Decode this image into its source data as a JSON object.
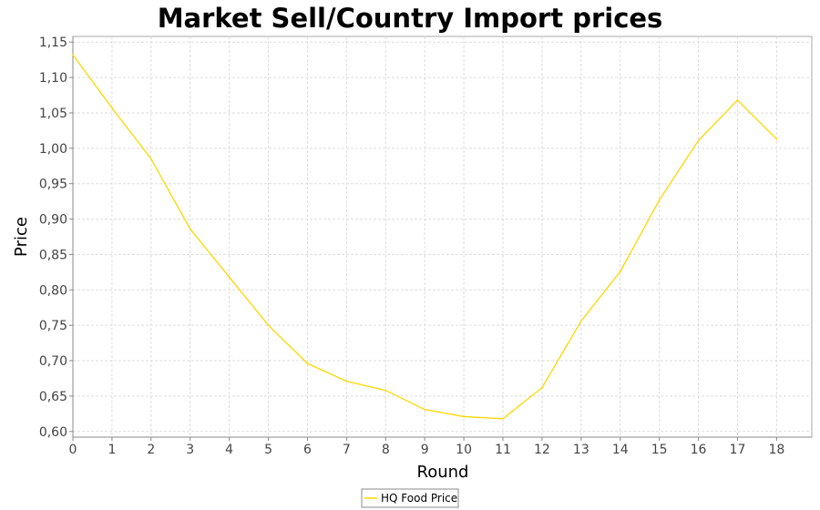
{
  "chart_data": {
    "type": "line",
    "title": "Market Sell/Country Import prices",
    "xlabel": "Round",
    "ylabel": "Price",
    "x": [
      0,
      1,
      2,
      3,
      4,
      5,
      6,
      7,
      8,
      9,
      10,
      11,
      12,
      13,
      14,
      15,
      16,
      17,
      18
    ],
    "series": [
      {
        "name": "HQ Food Price",
        "color": "#ffd700",
        "values": [
          1.132,
          1.057,
          0.985,
          0.886,
          0.818,
          0.75,
          0.696,
          0.671,
          0.658,
          0.631,
          0.621,
          0.618,
          0.662,
          0.756,
          0.826,
          0.927,
          1.011,
          1.068,
          1.013
        ]
      }
    ],
    "xlim": [
      0,
      18.9
    ],
    "ylim": [
      0.592,
      1.158
    ],
    "xticks": [
      0,
      1,
      2,
      3,
      4,
      5,
      6,
      7,
      8,
      9,
      10,
      11,
      12,
      13,
      14,
      15,
      16,
      17,
      18
    ],
    "yticks": [
      0.6,
      0.65,
      0.7,
      0.75,
      0.8,
      0.85,
      0.9,
      0.95,
      1.0,
      1.05,
      1.1,
      1.15
    ],
    "ytick_labels": [
      "0,60",
      "0,65",
      "0,70",
      "0,75",
      "0,80",
      "0,85",
      "0,90",
      "0,95",
      "1,00",
      "1,05",
      "1,10",
      "1,15"
    ],
    "grid": true,
    "legend_position": "bottom"
  }
}
